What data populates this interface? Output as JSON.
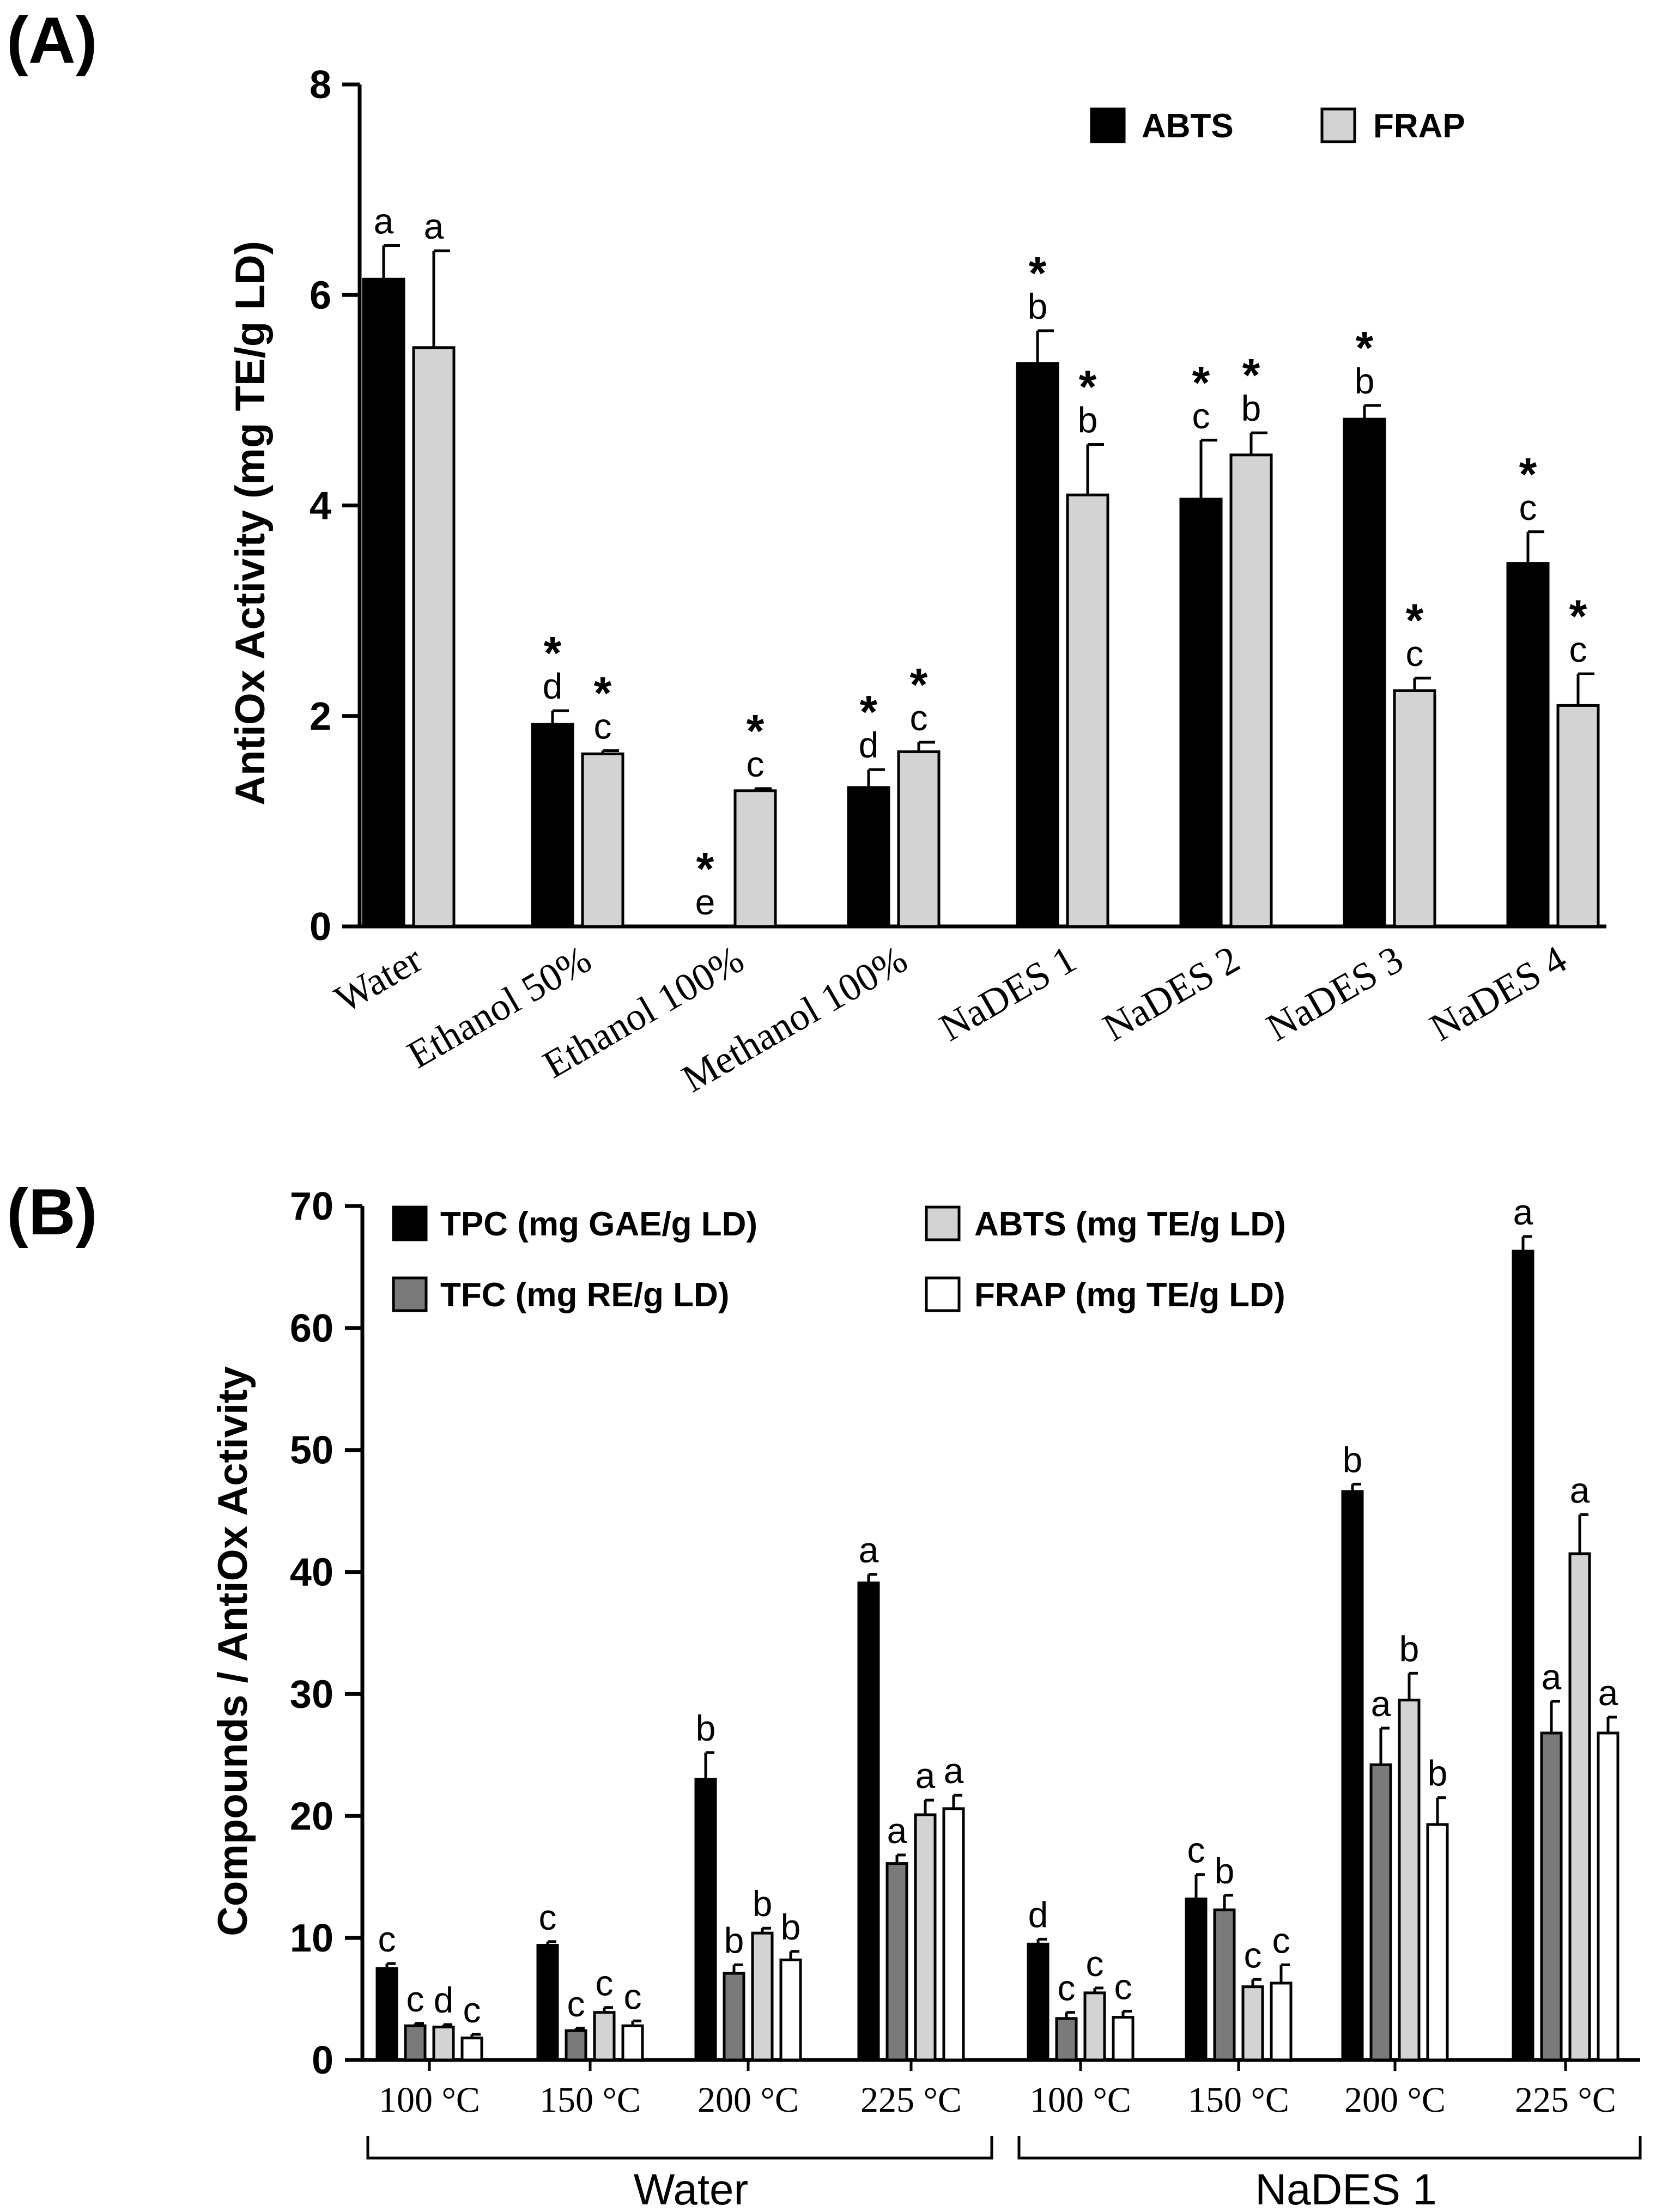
{
  "chart_data": [
    {
      "panel_label": "(A)",
      "type": "bar",
      "ylabel": "AntiOx Activity (mg TE/g LD)",
      "ylim": [
        0,
        8
      ],
      "yticks": [
        "0",
        "2",
        "4",
        "6",
        "8"
      ],
      "categories": [
        "Water",
        "Ethanol 50%",
        "Ethanol 100%",
        "Methanol 100%",
        "NaDES 1",
        "NaDES 2",
        "NaDES 3",
        "NaDES 4"
      ],
      "legend_position": "top-right",
      "series": [
        {
          "name": "ABTS",
          "color": "#000000",
          "values": [
            6.15,
            1.92,
            0,
            1.32,
            5.35,
            4.06,
            4.82,
            3.45
          ],
          "errors": [
            0.32,
            0.13,
            0,
            0.17,
            0.31,
            0.56,
            0.13,
            0.3
          ],
          "labels": [
            "a",
            "d",
            "e",
            "d",
            "b",
            "c",
            "b",
            "c"
          ],
          "stars": [
            "",
            "*",
            "*",
            "*",
            "*",
            "*",
            "*",
            "*"
          ]
        },
        {
          "name": "FRAP",
          "color": "#d3d3d3",
          "values": [
            5.5,
            1.64,
            1.29,
            1.66,
            4.1,
            4.48,
            2.24,
            2.1
          ],
          "errors": [
            0.92,
            0.03,
            0.02,
            0.09,
            0.48,
            0.21,
            0.12,
            0.3
          ],
          "labels": [
            "a",
            "c",
            "c",
            "c",
            "b",
            "b",
            "c",
            "c"
          ],
          "stars": [
            "",
            "*",
            "*",
            "*",
            "*",
            "*",
            "*",
            "*"
          ]
        }
      ]
    },
    {
      "panel_label": "(B)",
      "type": "bar",
      "ylabel": "Compounds / AntiOx Activity",
      "ylim": [
        0,
        70
      ],
      "yticks": [
        "0",
        "10",
        "20",
        "30",
        "40",
        "50",
        "60",
        "70"
      ],
      "categories": [
        "100 °C",
        "150 °C",
        "200 °C",
        "225 °C",
        "100 °C",
        "150 °C",
        "200 °C",
        "225 °C"
      ],
      "groups": [
        {
          "name": "Water",
          "categories": [
            0,
            3
          ]
        },
        {
          "name": "NaDES 1",
          "categories": [
            4,
            7
          ]
        }
      ],
      "legend_position": "top-left",
      "series": [
        {
          "name": "TPC (mg GAE/g LD)",
          "color": "#000000",
          "values": [
            7.5,
            9.4,
            23,
            39.1,
            9.5,
            13.2,
            46.6,
            66.3
          ],
          "errors": [
            0.4,
            0.3,
            2.2,
            0.7,
            0.4,
            2.0,
            0.6,
            1.2
          ],
          "labels": [
            "c",
            "c",
            "b",
            "a",
            "d",
            "c",
            "b",
            "a"
          ]
        },
        {
          "name": "TFC  (mg RE/g LD)",
          "color": "#7a7a7a",
          "values": [
            2.8,
            2.4,
            7.1,
            16.1,
            3.4,
            12.3,
            24.2,
            26.8
          ],
          "errors": [
            0.2,
            0.2,
            0.7,
            0.7,
            0.5,
            1.2,
            3.0,
            2.6
          ],
          "labels": [
            "c",
            "c",
            "b",
            "a",
            "c",
            "b",
            "a",
            "a"
          ]
        },
        {
          "name": "ABTS  (mg TE/g LD)",
          "color": "#d3d3d3",
          "values": [
            2.7,
            3.9,
            10.4,
            20.1,
            5.5,
            6.0,
            29.5,
            41.5
          ],
          "errors": [
            0.2,
            0.4,
            0.4,
            1.2,
            0.4,
            0.6,
            2.2,
            3.2
          ],
          "labels": [
            "d",
            "c",
            "b",
            "a",
            "c",
            "c",
            "b",
            "a"
          ]
        },
        {
          "name": "FRAP  (mg TE/g LD)",
          "color": "#ffffff",
          "values": [
            1.8,
            2.8,
            8.2,
            20.6,
            3.5,
            6.3,
            19.3,
            26.8
          ],
          "errors": [
            0.3,
            0.4,
            0.7,
            1.1,
            0.5,
            1.5,
            2.2,
            1.3
          ],
          "labels": [
            "c",
            "c",
            "b",
            "a",
            "c",
            "c",
            "b",
            "a"
          ]
        }
      ]
    }
  ]
}
